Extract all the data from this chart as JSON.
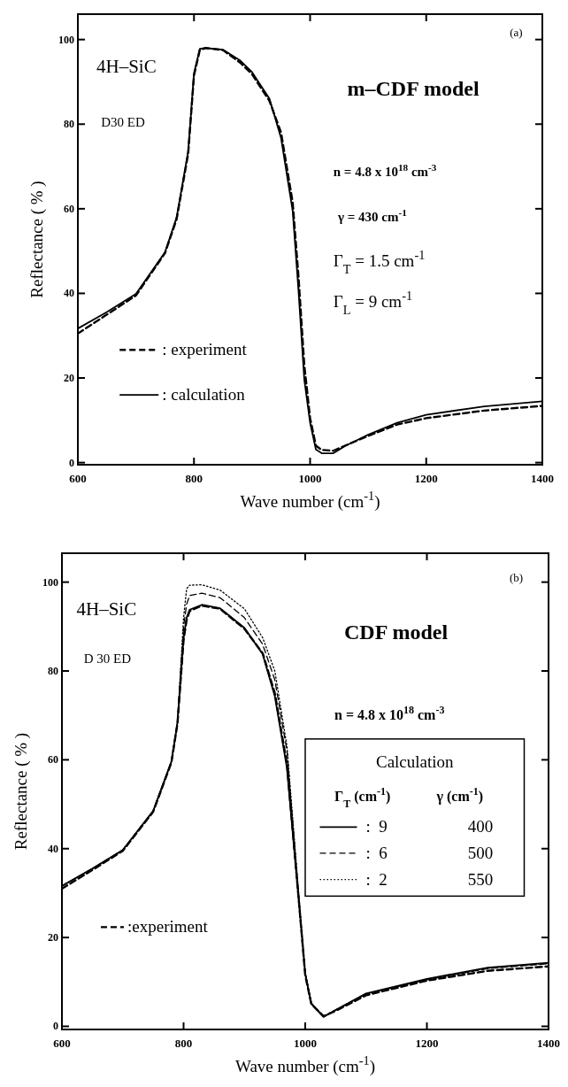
{
  "chart_data": [
    {
      "type": "line",
      "title": "m–CDF model",
      "xlabel": "Wave number  (cm$^{-1}$)",
      "ylabel": "Reflectance ( % )",
      "xlim": [
        600,
        1400
      ],
      "xticks": [
        600,
        800,
        1000,
        1200,
        1400
      ],
      "ylim": [
        -0.5,
        106
      ],
      "yticks": [
        0,
        20,
        40,
        60,
        80,
        100
      ],
      "grid": false,
      "legend": "left",
      "annotations": [
        "(a)",
        "4H–SiC",
        "D30 ED",
        "n = 4.8 x 10$^{18}$ cm$^{-3}$",
        "γ = 430 cm$^{-1}$",
        "Γ$_{T}$ = 1.5 cm$^{-1}$",
        "Γ$_{L}$ = 9 cm$^{-1}$"
      ],
      "x": [
        600,
        650,
        700,
        750,
        770,
        790,
        800,
        810,
        820,
        850,
        880,
        900,
        930,
        950,
        970,
        980,
        990,
        1000,
        1010,
        1020,
        1040,
        1060,
        1100,
        1150,
        1200,
        1300,
        1400
      ],
      "series": [
        {
          "name": ": experiment",
          "color": "#000000",
          "line_style": "dashed",
          "values": [
            30.5,
            35,
            39.5,
            49.5,
            57.5,
            73,
            91.5,
            97.5,
            98,
            97.5,
            94.5,
            91.8,
            85.5,
            78,
            61.5,
            44,
            23,
            10.5,
            4,
            3,
            2.8,
            4,
            6.3,
            9,
            10.5,
            12.3,
            13.4
          ]
        },
        {
          "name": ": calculation",
          "color": "#000000",
          "line_style": "solid",
          "values": [
            31.7,
            35.6,
            39.9,
            49.7,
            57.9,
            73.6,
            92,
            97.8,
            98,
            97.6,
            95,
            92.3,
            86,
            76.7,
            59.5,
            40.7,
            19.6,
            9.4,
            3.1,
            2.2,
            2.2,
            3.9,
            6.6,
            9.4,
            11.3,
            13.3,
            14.5
          ]
        }
      ]
    },
    {
      "type": "line",
      "title": "CDF model",
      "xlabel": "Wave number  (cm$^{-1}$)",
      "ylabel": "Reflectance ( % )",
      "xlim": [
        600,
        1400
      ],
      "xticks": [
        600,
        800,
        1000,
        1200,
        1400
      ],
      "ylim": [
        -0.7,
        106.5
      ],
      "yticks": [
        0,
        20,
        40,
        60,
        80,
        100
      ],
      "grid": false,
      "legend": "bottom left",
      "legend_title": "Calculation",
      "annotations": [
        "Γ$_{T}$ (cm$^{-1}$)",
        "γ (cm$^{-1}$)",
        "400",
        "500",
        "550",
        "(b)",
        "4H–SiC",
        "D 30 ED",
        "n =  4.8 x 10$^{18}$ cm$^{-3}$"
      ],
      "x": [
        600,
        650,
        700,
        750,
        780,
        790,
        800,
        805,
        810,
        830,
        860,
        900,
        930,
        950,
        970,
        990,
        1000,
        1010,
        1030,
        1050,
        1100,
        1200,
        1300,
        1400
      ],
      "series": [
        {
          "name": ":experiment",
          "color": "#000000",
          "line_style": "dashed",
          "values": [
            31,
            35.2,
            39.5,
            48.3,
            59.4,
            68.2,
            87,
            91.5,
            93.5,
            94.7,
            94,
            89.5,
            84,
            75,
            59,
            27.5,
            11.5,
            5,
            2.3,
            3.5,
            7,
            10.3,
            12.5,
            13.5
          ]
        },
        {
          "name": ":  9",
          "color": "#000000",
          "line_style": "solid",
          "values": [
            31.6,
            35.5,
            39.7,
            48.5,
            59.6,
            68.4,
            87.5,
            92,
            93.8,
            94.9,
            94.1,
            89.7,
            83.8,
            74.3,
            58.1,
            27.2,
            11.8,
            5.1,
            2.1,
            3.7,
            7.4,
            10.7,
            13.2,
            14.3
          ]
        },
        {
          "name": ":  6",
          "color": "#000000",
          "line_style": "dashed",
          "values": [
            31.6,
            35.5,
            39.7,
            48.5,
            59.6,
            68.4,
            90,
            95,
            97,
            97.5,
            96.5,
            92,
            86,
            78,
            62,
            28,
            12,
            5.2,
            2.2,
            3.7,
            7.3,
            10.5,
            13,
            14.1
          ]
        },
        {
          "name": ":  2",
          "color": "#000000",
          "line_style": "dotted",
          "values": [
            31.6,
            35.5,
            39.7,
            48.5,
            59.6,
            68.4,
            92,
            98.5,
            99.3,
            99.4,
            98.2,
            94,
            87.5,
            80,
            63,
            28.5,
            12.2,
            5.3,
            2.2,
            3.7,
            7.3,
            10.6,
            13.1,
            14.2
          ]
        }
      ]
    }
  ]
}
